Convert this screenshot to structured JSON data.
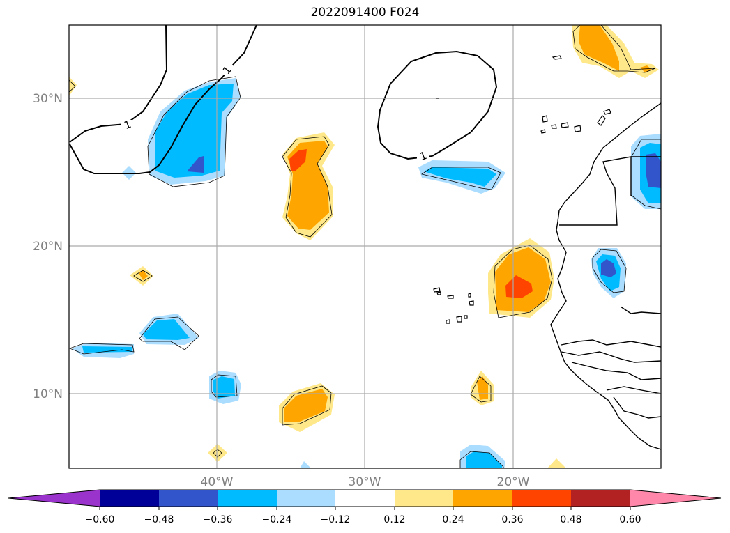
{
  "title": "2022091400 F024",
  "map": {
    "lat_labels": [
      "30°N",
      "20°N",
      "10°N"
    ],
    "lon_labels": [
      "40°W",
      "30°W",
      "20°W"
    ],
    "contour_labels": [
      "1",
      "1",
      "1"
    ]
  },
  "colorbar": {
    "colors": [
      "#9933cc",
      "#000099",
      "#3355cc",
      "#00bbff",
      "#aaddff",
      "#ffffff",
      "#ffe88a",
      "#ffa500",
      "#ff4400",
      "#b22222",
      "#ff88aa"
    ],
    "tick_labels": [
      "−0.60",
      "−0.48",
      "−0.36",
      "−0.24",
      "−0.12",
      "0.12",
      "0.24",
      "0.36",
      "0.48",
      "0.60"
    ]
  }
}
